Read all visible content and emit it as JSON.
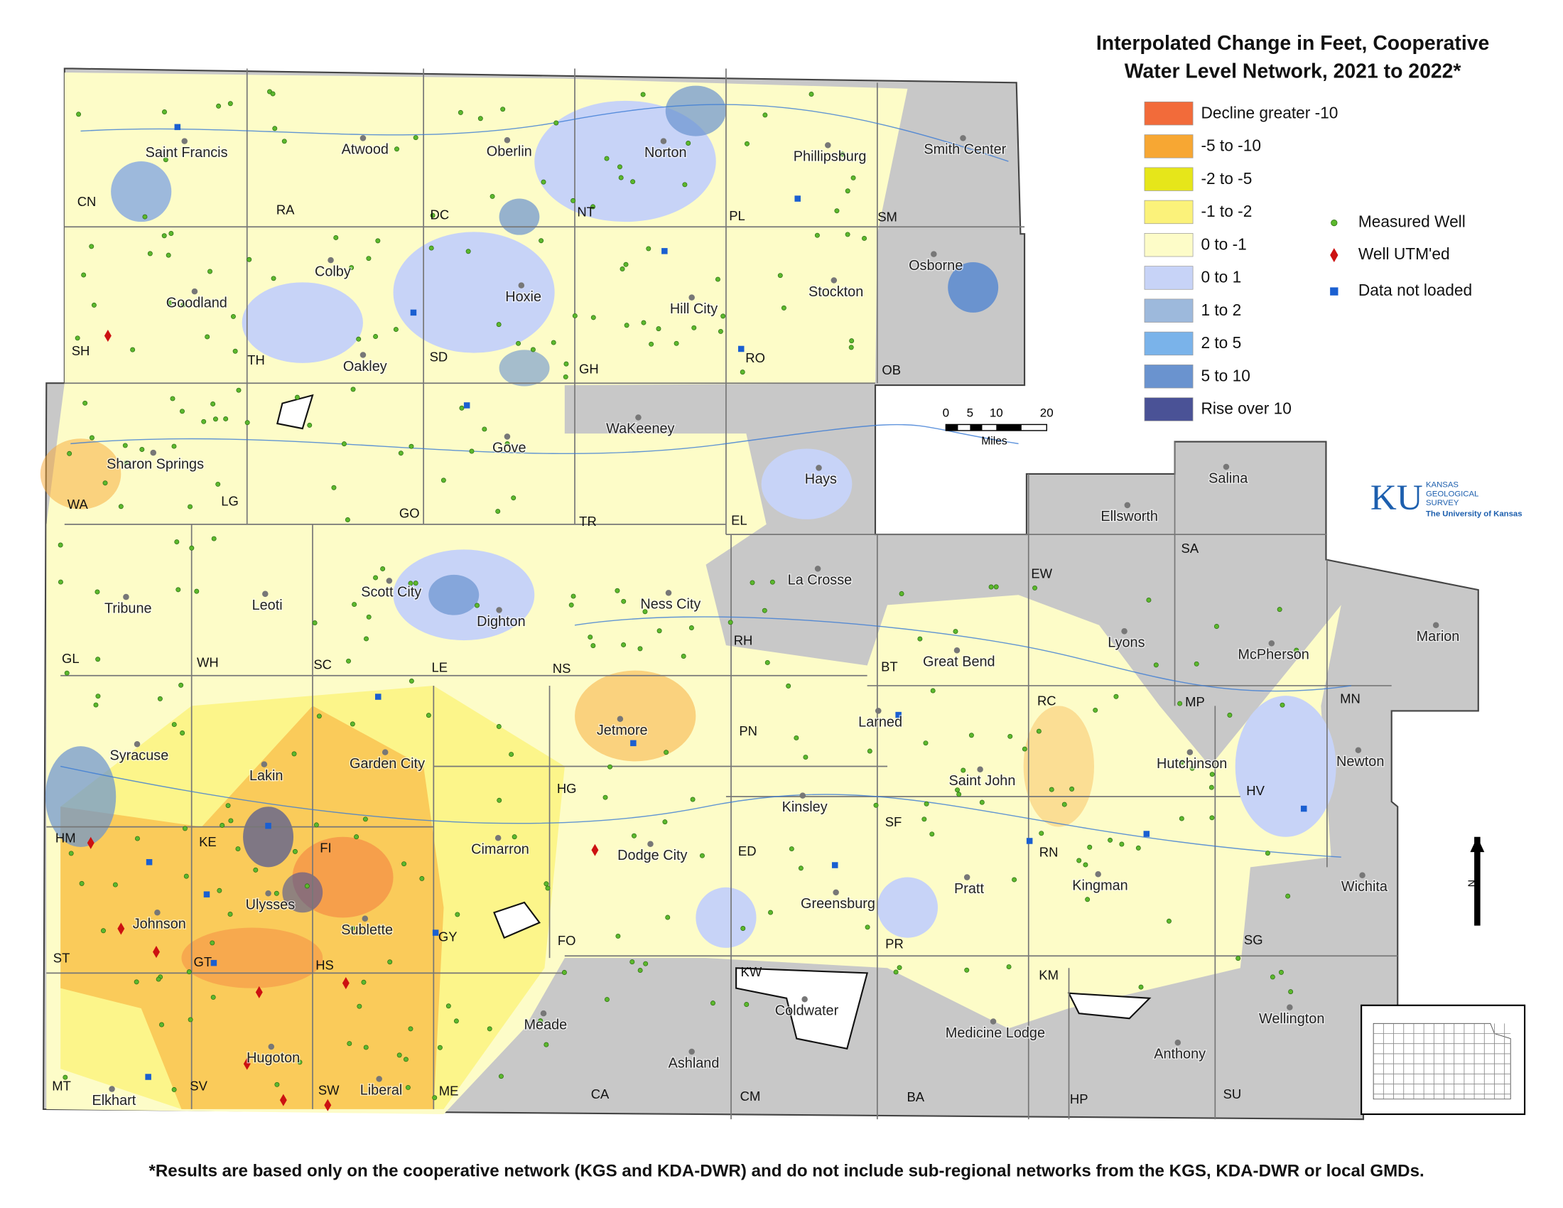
{
  "title": [
    "Interpolated Change in Feet, Cooperative",
    "Water Level Network, 2021 to 2022*"
  ],
  "legend": {
    "ranges": [
      {
        "label": "Decline greater -10",
        "color": "#f26b3a"
      },
      {
        "label": "-5 to -10",
        "color": "#f7a733"
      },
      {
        "label": "-2 to -5",
        "color": "#e6e61a"
      },
      {
        "label": "-1 to -2",
        "color": "#fbf27a"
      },
      {
        "label": "0 to -1",
        "color": "#fdfcc8"
      },
      {
        "label": "0 to 1",
        "color": "#c7d3f7"
      },
      {
        "label": "1 to 2",
        "color": "#9db9dc"
      },
      {
        "label": "2 to 5",
        "color": "#7ab3ea"
      },
      {
        "label": "5 to 10",
        "color": "#6a93cf"
      },
      {
        "label": "Rise over 10",
        "color": "#4a5296"
      }
    ],
    "symbols": [
      {
        "label": "Measured Well",
        "color": "#5cb82d"
      },
      {
        "label": "Well UTM'ed",
        "color": "#cc1111"
      },
      {
        "label": "Data not loaded",
        "color": "#1a5fd1"
      }
    ]
  },
  "scale_bar": {
    "ticks": [
      "0",
      "5",
      "10",
      "20"
    ],
    "unit": "Miles"
  },
  "logo": {
    "mark": "KU",
    "lines": [
      "KANSAS",
      "GEOLOGICAL",
      "SURVEY",
      "The University of Kansas"
    ]
  },
  "north": "N",
  "places": [
    "Saint Francis",
    "Atwood",
    "Oberlin",
    "Norton",
    "Phillipsburg",
    "Smith Center",
    "Goodland",
    "Colby",
    "Hoxie",
    "Hill City",
    "Stockton",
    "Osborne",
    "Oakley",
    "Sharon Springs",
    "Gove",
    "WaKeeney",
    "Hays",
    "Salina",
    "Ellsworth",
    "Tribune",
    "Leoti",
    "Scott City",
    "Dighton",
    "Ness City",
    "La Crosse",
    "Great Bend",
    "Lyons",
    "McPherson",
    "Marion",
    "Larned",
    "Syracuse",
    "Lakin",
    "Garden City",
    "Jetmore",
    "Saint John",
    "Hutchinson",
    "Newton",
    "Kinsley",
    "Cimarron",
    "Dodge City",
    "Kingman",
    "Wichita",
    "Johnson",
    "Ulysses",
    "Sublette",
    "Greensburg",
    "Pratt",
    "Coldwater",
    "Meade",
    "Medicine Lodge",
    "Wellington",
    "Anthony",
    "Hugoton",
    "Ashland",
    "Elkhart",
    "Liberal"
  ],
  "counties": [
    "CN",
    "RA",
    "DC",
    "NT",
    "PL",
    "SM",
    "SH",
    "TH",
    "SD",
    "GH",
    "RO",
    "OB",
    "WA",
    "LG",
    "GO",
    "TR",
    "EL",
    "SA",
    "EW",
    "GL",
    "WH",
    "SC",
    "LE",
    "NS",
    "RH",
    "BT",
    "MP",
    "MN",
    "RC",
    "PN",
    "HG",
    "HM",
    "KE",
    "FI",
    "ED",
    "SF",
    "RN",
    "HV",
    "ST",
    "GT",
    "HS",
    "GY",
    "FO",
    "PR",
    "KW",
    "KM",
    "SG",
    "MT",
    "SV",
    "SW",
    "ME",
    "CA",
    "CM",
    "BA",
    "HP",
    "SU"
  ],
  "footnote": "*Results are based only on the cooperative network (KGS and KDA-DWR) and do not include sub-regional networks from the KGS, KDA-DWR or local GMDs."
}
